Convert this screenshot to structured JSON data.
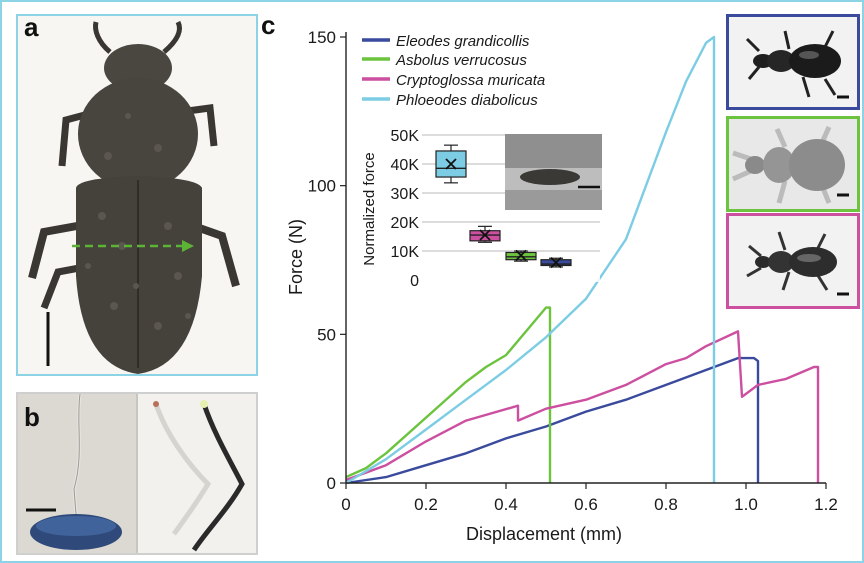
{
  "panel_labels": {
    "a": "a",
    "b": "b",
    "c": "c"
  },
  "colors": {
    "eleodes": "#3a4a9c",
    "asbolus": "#6cc33e",
    "cryptoglossa": "#cc4fa0",
    "phloeodes": "#7ccde4",
    "frame": "#8dd3e6"
  },
  "photos": {
    "panel_a": "beetle-dorsal-photo",
    "panel_b": "elytra-bending-photo",
    "thumbs": [
      "eleodes-thumbnail",
      "asbolus-thumbnail",
      "cryptoglossa-thumbnail"
    ]
  },
  "chart_data": [
    {
      "type": "line",
      "xlabel": "Displacement (mm)",
      "ylabel": "Force (N)",
      "xlim": [
        0,
        1.2
      ],
      "ylim": [
        0,
        150
      ],
      "x_ticks": [
        0,
        0.2,
        0.4,
        0.6,
        0.8,
        1.0,
        1.2
      ],
      "x_tick_labels": [
        "0",
        "0.2",
        "0.4",
        "0.6",
        "0.8",
        "1.0",
        "1.2"
      ],
      "y_ticks": [
        0,
        50,
        100,
        150
      ],
      "y_tick_labels": [
        "0",
        "50",
        "100",
        "150"
      ],
      "legend_position": "top-left",
      "series": [
        {
          "name": "Eleodes grandicollis",
          "color": "#3a4a9c",
          "x": [
            0,
            0.1,
            0.2,
            0.3,
            0.4,
            0.5,
            0.6,
            0.7,
            0.8,
            0.9,
            0.98,
            1.02,
            1.03,
            1.03
          ],
          "y": [
            0,
            2,
            6,
            10,
            15,
            19,
            24,
            28,
            33,
            38,
            42,
            42,
            41,
            0
          ]
        },
        {
          "name": "Asbolus verrucosus",
          "color": "#6cc33e",
          "x": [
            0,
            0.05,
            0.1,
            0.2,
            0.3,
            0.35,
            0.4,
            0.45,
            0.5,
            0.51,
            0.51
          ],
          "y": [
            2,
            5,
            10,
            22,
            34,
            39,
            43,
            51,
            59,
            59,
            0
          ]
        },
        {
          "name": "Cryptoglossa muricata",
          "color": "#cc4fa0",
          "x": [
            0,
            0.1,
            0.2,
            0.3,
            0.43,
            0.43,
            0.5,
            0.6,
            0.7,
            0.8,
            0.85,
            0.9,
            0.98,
            0.99,
            1.03,
            1.1,
            1.17,
            1.18,
            1.18
          ],
          "y": [
            1,
            6,
            14,
            21,
            26,
            21,
            25,
            28,
            33,
            40,
            42,
            46,
            51,
            29,
            33,
            35,
            39,
            39,
            0
          ]
        },
        {
          "name": "Phloeodes diabolicus",
          "color": "#7ccde4",
          "x": [
            0,
            0.1,
            0.2,
            0.3,
            0.4,
            0.5,
            0.6,
            0.7,
            0.8,
            0.85,
            0.9,
            0.92,
            0.92
          ],
          "y": [
            0,
            8,
            18,
            28,
            38,
            49,
            62,
            82,
            118,
            135,
            148,
            150,
            0
          ]
        }
      ]
    },
    {
      "type": "box",
      "ylabel": "Normalized force",
      "ylim": [
        0,
        50000
      ],
      "y_ticks": [
        0,
        10000,
        20000,
        30000,
        40000,
        50000
      ],
      "y_tick_labels": [
        "0",
        "10K",
        "20K",
        "30K",
        "40K",
        "50K"
      ],
      "boxes": [
        {
          "name": "Phloeodes diabolicus",
          "color": "#7ccde4",
          "whisker_low": 33500,
          "q1": 35500,
          "median": 38500,
          "q3": 44500,
          "whisker_high": 46500,
          "mean": 40000
        },
        {
          "name": "Cryptoglossa muricata",
          "color": "#cc4fa0",
          "whisker_low": 13000,
          "q1": 13500,
          "median": 15500,
          "q3": 17000,
          "whisker_high": 18500,
          "mean": 15500
        },
        {
          "name": "Asbolus verrucosus",
          "color": "#6cc33e",
          "whisker_low": 6500,
          "q1": 7000,
          "median": 8000,
          "q3": 9500,
          "whisker_high": 10000,
          "mean": 8500
        },
        {
          "name": "Eleodes grandicollis",
          "color": "#3a4a9c",
          "whisker_low": 4500,
          "q1": 5000,
          "median": 5500,
          "q3": 7000,
          "whisker_high": 7500,
          "mean": 6000
        }
      ]
    }
  ]
}
